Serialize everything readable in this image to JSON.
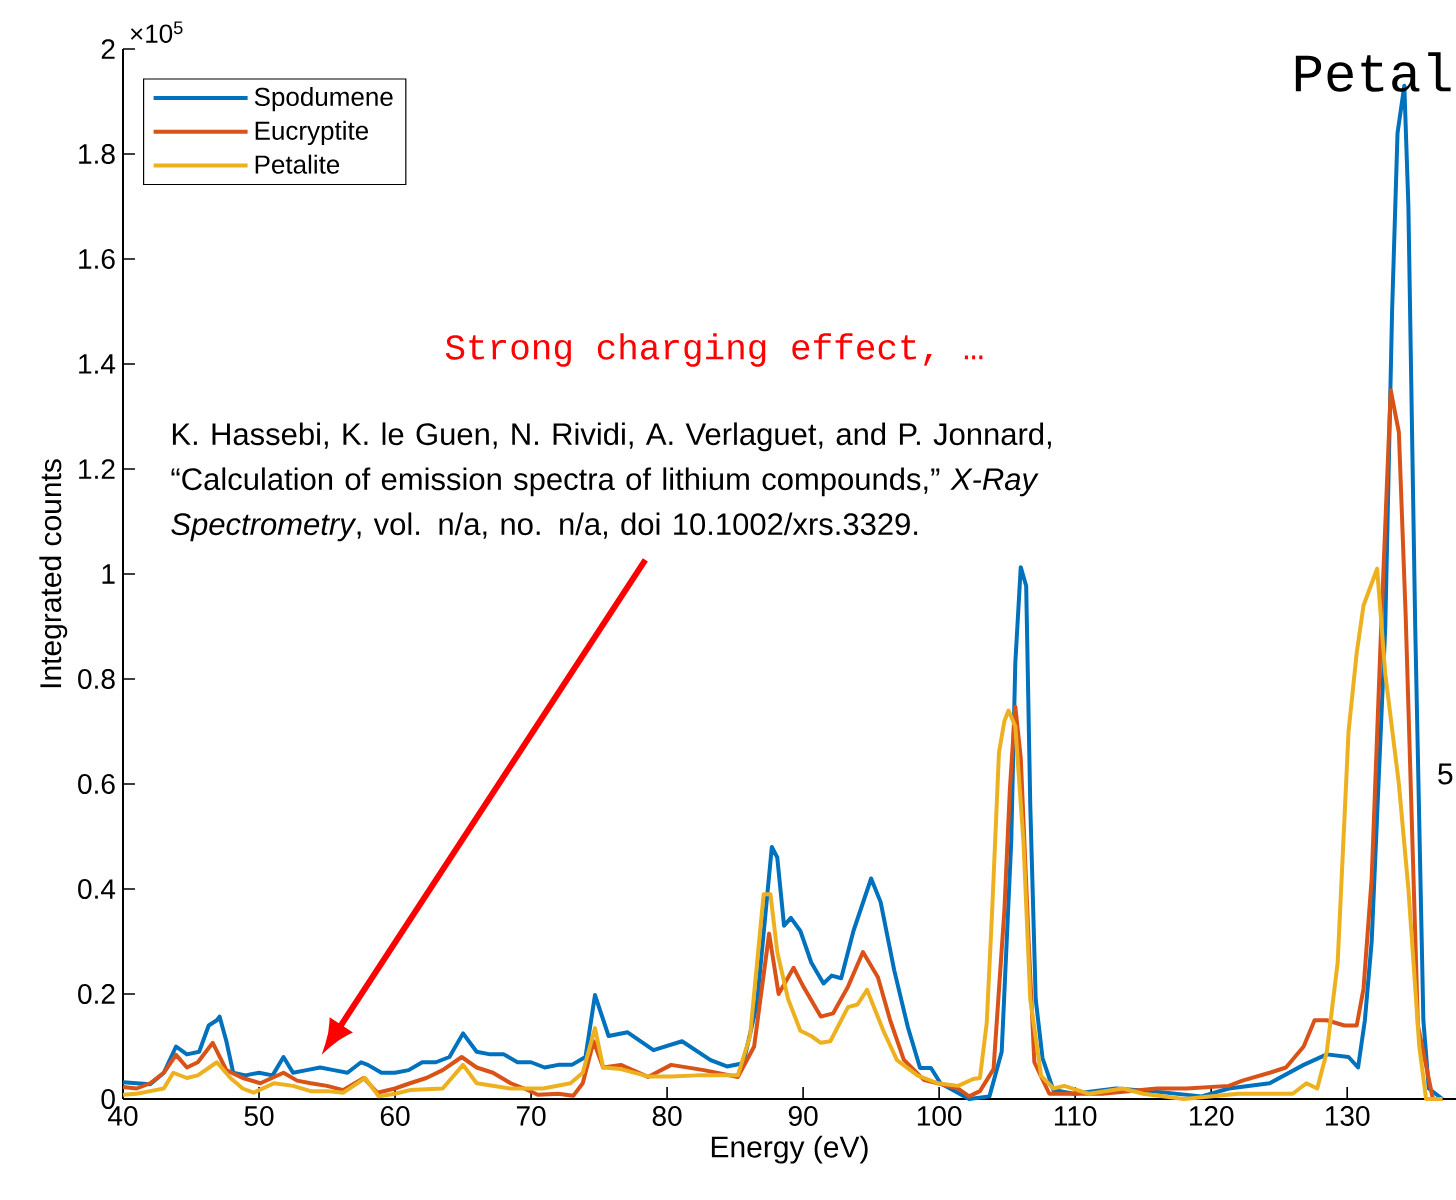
{
  "chart_data": {
    "type": "line",
    "xlabel": "Energy (eV)",
    "ylabel": "Integrated counts",
    "xlim": [
      40,
      138
    ],
    "ylim": [
      0,
      2
    ],
    "xticks": [
      40,
      50,
      60,
      70,
      80,
      90,
      100,
      110,
      120,
      130
    ],
    "yticks": [
      0,
      0.2,
      0.4,
      0.6,
      0.8,
      1,
      1.2,
      1.4,
      1.6,
      1.8,
      2
    ],
    "grid": false,
    "legend": "top left",
    "marker": "none",
    "line_style": "solid",
    "annotations": [
      "×10$^{5}$",
      "Petal",
      "5",
      "Strong charging effect, …",
      "K. Hassebi, K. le Guen, N. Rividi, A. Verlaguet, and P. Jonnard, “Calculation of emission spectra of lithium compounds,” *X-Ray Spectrometry*, vol. n/a, no. n/a, doi 10.1002/xrs.3329."
    ],
    "series": [
      {
        "name": "Spodumene",
        "color": "#0072bd",
        "x": [
          40,
          41,
          42,
          43,
          43.9,
          44.7,
          45.6,
          46.3,
          46.9,
          47.1,
          47.6,
          48.1,
          49,
          50,
          51,
          51.8,
          52.5,
          53.5,
          54.5,
          55.5,
          56.5,
          57.5,
          58,
          59,
          60,
          61,
          62,
          63,
          64,
          65,
          66,
          67,
          68,
          69,
          70,
          71,
          72,
          73,
          74,
          74.7,
          75.7,
          77.1,
          79,
          81.1,
          83.2,
          84.4,
          85.6,
          86.6,
          87.7,
          88.1,
          88.6,
          89.1,
          89.8,
          90.6,
          91.5,
          92.1,
          92.8,
          93.7,
          95,
          95.7,
          96.7,
          97.7,
          98.6,
          99.4,
          100.1,
          102.2,
          103.7,
          104.6,
          105.3,
          105.6,
          106,
          106.4,
          106.7,
          107.1,
          107.6,
          108.4,
          109.9,
          113,
          115.6,
          119.3,
          121.3,
          124.3,
          126.8,
          128.5,
          130.1,
          130.8,
          131.3,
          131.8,
          132.3,
          132.8,
          133.3,
          133.7,
          134.2,
          134.5,
          135,
          135.6,
          136,
          137
        ],
        "values": [
          0.032,
          0.03,
          0.028,
          0.05,
          0.1,
          0.085,
          0.09,
          0.14,
          0.15,
          0.157,
          0.11,
          0.05,
          0.045,
          0.05,
          0.045,
          0.08,
          0.05,
          0.055,
          0.06,
          0.055,
          0.05,
          0.07,
          0.065,
          0.05,
          0.05,
          0.055,
          0.07,
          0.07,
          0.08,
          0.125,
          0.09,
          0.085,
          0.085,
          0.07,
          0.07,
          0.06,
          0.065,
          0.065,
          0.08,
          0.198,
          0.12,
          0.127,
          0.093,
          0.11,
          0.074,
          0.062,
          0.068,
          0.18,
          0.48,
          0.46,
          0.33,
          0.345,
          0.32,
          0.26,
          0.22,
          0.235,
          0.23,
          0.32,
          0.42,
          0.375,
          0.245,
          0.137,
          0.059,
          0.059,
          0.03,
          0,
          0.005,
          0.09,
          0.49,
          0.83,
          1.013,
          0.977,
          0.56,
          0.19,
          0.078,
          0.017,
          0.01,
          0.02,
          0.015,
          0.005,
          0.02,
          0.03,
          0.065,
          0.085,
          0.08,
          0.06,
          0.15,
          0.3,
          0.6,
          0.9,
          1.5,
          1.84,
          1.93,
          1.7,
          0.9,
          0.15,
          0.02,
          0
        ]
      },
      {
        "name": "Eucryptite",
        "color": "#d95319",
        "x": [
          40,
          41,
          42,
          43,
          43.9,
          44.7,
          45.5,
          46.6,
          47.6,
          48.8,
          50.1,
          51.8,
          52.8,
          53.8,
          55,
          56.2,
          57.7,
          58.7,
          60,
          61.1,
          62.3,
          63.5,
          64.9,
          66,
          67.2,
          68.5,
          69.5,
          70.5,
          72,
          73.1,
          73.8,
          74.6,
          75.3,
          76.6,
          78.6,
          80.3,
          82.7,
          85.2,
          86.4,
          87.5,
          88.2,
          89.3,
          90,
          91.3,
          92.2,
          93.3,
          94.4,
          95.5,
          96.4,
          97.4,
          98.9,
          99.9,
          101.4,
          102.2,
          103,
          104,
          104.8,
          105.2,
          105.6,
          106,
          106.6,
          107,
          108.1,
          112,
          116,
          118.2,
          121.3,
          122.3,
          124.3,
          125.5,
          126.8,
          127.6,
          128.5,
          129.8,
          130.7,
          131.2,
          131.8,
          132.5,
          133.2,
          133.8,
          134.3,
          135.2,
          136.3,
          137
        ],
        "values": [
          0.023,
          0.02,
          0.03,
          0.05,
          0.084,
          0.06,
          0.07,
          0.107,
          0.055,
          0.04,
          0.03,
          0.05,
          0.035,
          0.03,
          0.025,
          0.017,
          0.04,
          0.012,
          0.02,
          0.03,
          0.04,
          0.055,
          0.08,
          0.06,
          0.05,
          0.03,
          0.02,
          0.008,
          0.01,
          0.006,
          0.03,
          0.11,
          0.06,
          0.065,
          0.042,
          0.065,
          0.055,
          0.042,
          0.1,
          0.315,
          0.2,
          0.25,
          0.215,
          0.157,
          0.163,
          0.214,
          0.28,
          0.232,
          0.15,
          0.075,
          0.036,
          0.03,
          0.02,
          0.005,
          0.015,
          0.057,
          0.36,
          0.59,
          0.747,
          0.65,
          0.29,
          0.07,
          0.01,
          0.01,
          0.02,
          0.02,
          0.025,
          0.035,
          0.05,
          0.06,
          0.1,
          0.15,
          0.15,
          0.14,
          0.14,
          0.21,
          0.42,
          0.9,
          1.35,
          1.27,
          0.92,
          0.14,
          0,
          0
        ]
      },
      {
        "name": "Petalite",
        "color": "#edb120",
        "x": [
          40,
          41,
          42,
          43,
          43.7,
          44.7,
          45.5,
          46.9,
          47.9,
          48.8,
          49.6,
          51.1,
          52.5,
          53.8,
          55,
          56.2,
          57.8,
          58.8,
          60,
          61.1,
          63.5,
          65,
          66,
          68.5,
          70.9,
          72.9,
          73.8,
          74.7,
          75.3,
          76.6,
          78.6,
          80.3,
          82.2,
          85.2,
          86.1,
          87.1,
          87.6,
          88.1,
          88.9,
          89.8,
          90.6,
          91.3,
          92,
          93.3,
          94,
          94.7,
          95.9,
          96.9,
          98.4,
          99.9,
          101.4,
          102.5,
          103,
          103.5,
          103.9,
          104.4,
          104.8,
          105.1,
          105.6,
          106.2,
          106.7,
          107.5,
          108.4,
          109.2,
          111,
          113.5,
          115,
          118,
          120,
          122,
          124,
          126,
          127,
          127.8,
          128.5,
          129.3,
          130.1,
          130.7,
          131.2,
          132.2,
          132.8,
          133.8,
          134.5,
          135.3,
          135.8,
          137
        ],
        "values": [
          0.008,
          0.01,
          0.015,
          0.02,
          0.05,
          0.04,
          0.045,
          0.07,
          0.04,
          0.02,
          0.012,
          0.03,
          0.025,
          0.015,
          0.015,
          0.012,
          0.04,
          0.005,
          0.01,
          0.017,
          0.02,
          0.065,
          0.03,
          0.02,
          0.02,
          0.03,
          0.05,
          0.135,
          0.06,
          0.057,
          0.043,
          0.043,
          0.045,
          0.045,
          0.12,
          0.39,
          0.39,
          0.28,
          0.19,
          0.13,
          0.12,
          0.107,
          0.11,
          0.175,
          0.18,
          0.208,
          0.13,
          0.074,
          0.045,
          0.03,
          0.025,
          0.038,
          0.04,
          0.145,
          0.36,
          0.66,
          0.72,
          0.74,
          0.71,
          0.49,
          0.19,
          0.044,
          0.02,
          0.025,
          0.01,
          0.02,
          0.01,
          0,
          0.005,
          0.01,
          0.01,
          0.01,
          0.03,
          0.02,
          0.09,
          0.26,
          0.7,
          0.85,
          0.94,
          1.01,
          0.81,
          0.6,
          0.4,
          0.1,
          0,
          0
        ]
      }
    ]
  }
}
